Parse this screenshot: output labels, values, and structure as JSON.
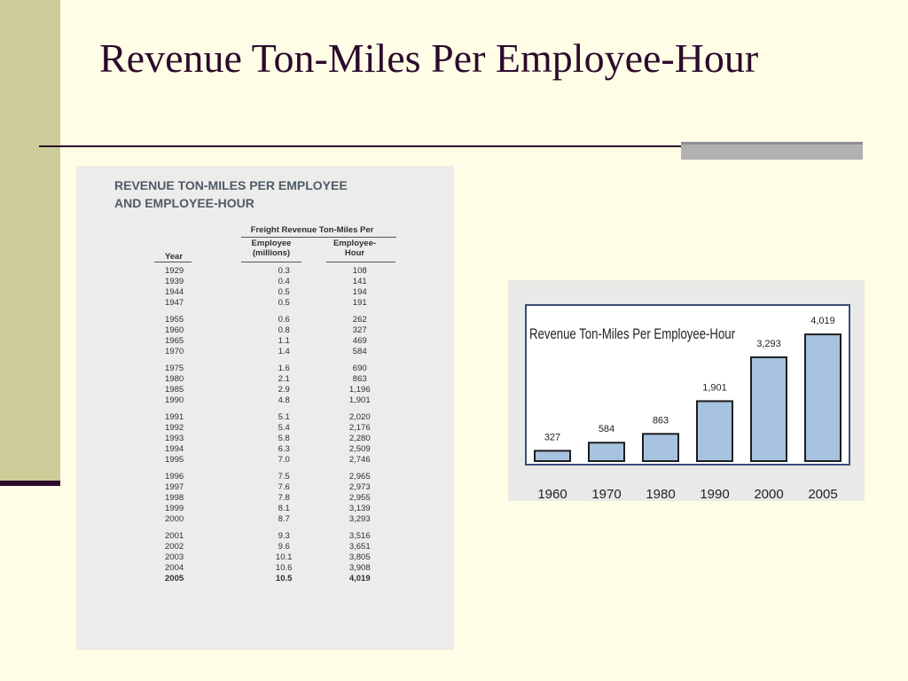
{
  "slide": {
    "title": "Revenue Ton-Miles Per Employee-Hour"
  },
  "table": {
    "heading_line1": "REVENUE TON-MILES PER EMPLOYEE",
    "heading_line2": "AND EMPLOYEE-HOUR",
    "group_header": "Freight Revenue Ton-Miles Per",
    "col_year": "Year",
    "col_employee_1": "Employee",
    "col_employee_2": "(millions)",
    "col_hour_1": "Employee-",
    "col_hour_2": "Hour",
    "groups": [
      [
        [
          "1929",
          "0.3",
          "108"
        ],
        [
          "1939",
          "0.4",
          "141"
        ],
        [
          "1944",
          "0.5",
          "194"
        ],
        [
          "1947",
          "0.5",
          "191"
        ]
      ],
      [
        [
          "1955",
          "0.6",
          "262"
        ],
        [
          "1960",
          "0.8",
          "327"
        ],
        [
          "1965",
          "1.1",
          "469"
        ],
        [
          "1970",
          "1.4",
          "584"
        ]
      ],
      [
        [
          "1975",
          "1.6",
          "690"
        ],
        [
          "1980",
          "2.1",
          "863"
        ],
        [
          "1985",
          "2.9",
          "1,196"
        ],
        [
          "1990",
          "4.8",
          "1,901"
        ]
      ],
      [
        [
          "1991",
          "5.1",
          "2,020"
        ],
        [
          "1992",
          "5.4",
          "2,176"
        ],
        [
          "1993",
          "5.8",
          "2,280"
        ],
        [
          "1994",
          "6.3",
          "2,509"
        ],
        [
          "1995",
          "7.0",
          "2,746"
        ]
      ],
      [
        [
          "1996",
          "7.5",
          "2,965"
        ],
        [
          "1997",
          "7.6",
          "2,973"
        ],
        [
          "1998",
          "7.8",
          "2,955"
        ],
        [
          "1999",
          "8.1",
          "3,139"
        ],
        [
          "2000",
          "8.7",
          "3,293"
        ]
      ],
      [
        [
          "2001",
          "9.3",
          "3,516"
        ],
        [
          "2002",
          "9.6",
          "3,651"
        ],
        [
          "2003",
          "10.1",
          "3,805"
        ],
        [
          "2004",
          "10.6",
          "3,908"
        ],
        [
          "2005",
          "10.5",
          "4,019"
        ]
      ]
    ]
  },
  "chart_data": {
    "type": "bar",
    "title": "Revenue Ton-Miles Per Employee-Hour",
    "categories": [
      "1960",
      "1970",
      "1980",
      "1990",
      "2000",
      "2005"
    ],
    "values": [
      327,
      584,
      863,
      1901,
      3293,
      4019
    ],
    "value_labels": [
      "327",
      "584",
      "863",
      "1,901",
      "3,293",
      "4,019"
    ],
    "ylim": [
      0,
      4500
    ],
    "grid": false,
    "colors": {
      "bar": "#a8c3e0",
      "bar_edge": "#1d1d1d",
      "frame": "#3c4e78"
    }
  }
}
